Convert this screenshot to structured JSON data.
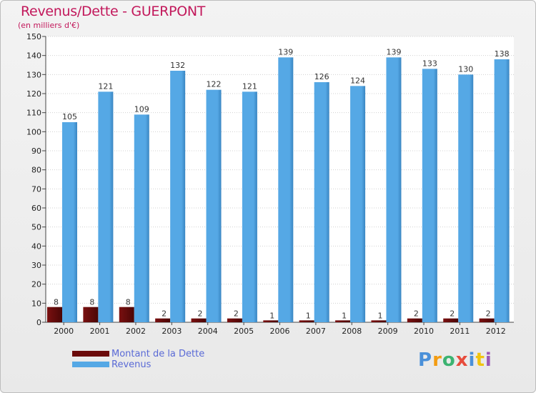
{
  "chart_data": {
    "type": "bar",
    "title": "Revenus/Dette - GUERPONT",
    "subtitle": "(en milliers d'€)",
    "categories": [
      "2000",
      "2001",
      "2002",
      "2003",
      "2004",
      "2005",
      "2006",
      "2007",
      "2008",
      "2009",
      "2010",
      "2011",
      "2012"
    ],
    "series": [
      {
        "name": "Montant de la Dette",
        "values": [
          8,
          8,
          8,
          2,
          2,
          2,
          1,
          1,
          1,
          1,
          2,
          2,
          2
        ]
      },
      {
        "name": "Revenus",
        "values": [
          105,
          121,
          109,
          132,
          122,
          121,
          139,
          126,
          124,
          139,
          133,
          130,
          138
        ]
      }
    ],
    "ylim": [
      0,
      150
    ],
    "yticks": [
      0,
      10,
      20,
      30,
      40,
      50,
      60,
      70,
      80,
      90,
      100,
      110,
      120,
      130,
      140,
      150
    ],
    "grid": true,
    "legend": "bottom-left"
  },
  "colors": {
    "title": "#c2185b",
    "debt": "#6b0a0a",
    "revenue": "#55a8e5",
    "revenue_side": "#3a86c2",
    "legend_text": "#5a6ad6"
  },
  "logo": {
    "text": "Proxiti",
    "letter_colors": [
      "#4a90d9",
      "#f39c12",
      "#3cb371",
      "#e74c3c",
      "#4a90d9",
      "#f1c40f",
      "#9b59b6"
    ]
  }
}
